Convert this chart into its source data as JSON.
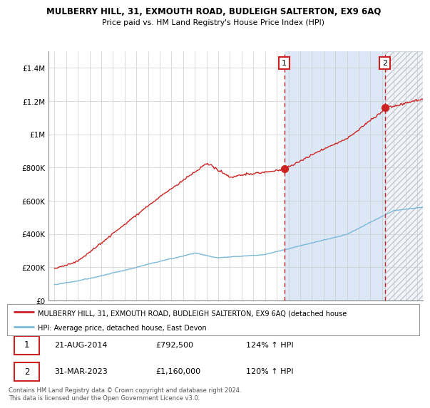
{
  "title": "MULBERRY HILL, 31, EXMOUTH ROAD, BUDLEIGH SALTERTON, EX9 6AQ",
  "subtitle": "Price paid vs. HM Land Registry's House Price Index (HPI)",
  "hpi_color": "#7ab8d9",
  "price_color": "#cc2222",
  "vline_color": "#cc2222",
  "marker1_x": 2014.646,
  "marker1_y": 792500,
  "marker1_label": "1",
  "marker1_date": "21-AUG-2014",
  "marker1_price": "£792,500",
  "marker1_hpi": "124% ↑ HPI",
  "marker2_x": 2023.247,
  "marker2_y": 1160000,
  "marker2_label": "2",
  "marker2_date": "31-MAR-2023",
  "marker2_price": "£1,160,000",
  "marker2_hpi": "120% ↑ HPI",
  "ylim": [
    0,
    1500000
  ],
  "xlim": [
    1994.5,
    2026.5
  ],
  "legend_line1": "MULBERRY HILL, 31, EXMOUTH ROAD, BUDLEIGH SALTERTON, EX9 6AQ (detached house",
  "legend_line2": "HPI: Average price, detached house, East Devon",
  "footer": "Contains HM Land Registry data © Crown copyright and database right 2024.\nThis data is licensed under the Open Government Licence v3.0.",
  "background_color": "#ffffff",
  "grid_color": "#cccccc",
  "shade_color": "#dce8f5",
  "hatch_area_color": "#e8e8e8"
}
